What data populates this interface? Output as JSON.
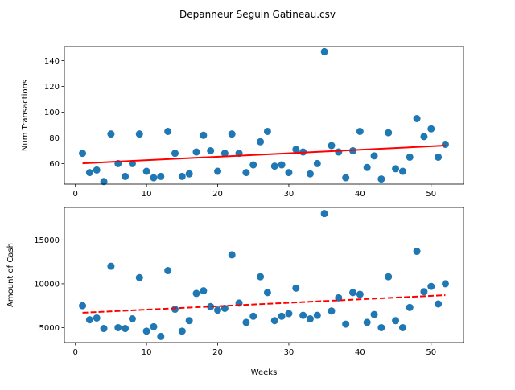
{
  "figure": {
    "suptitle": "Depanneur Seguin Gatineau.csv"
  },
  "colors": {
    "points": "#1f77b4",
    "trend": "#ff0000",
    "frame": "#000000",
    "background": "#ffffff"
  },
  "chart_data": [
    {
      "type": "scatter",
      "title": "",
      "xlabel": "",
      "ylabel": "Num Transactions",
      "xlim": [
        -1.55,
        54.55
      ],
      "ylim": [
        44,
        151
      ],
      "x_ticks": [
        0,
        10,
        20,
        30,
        40,
        50
      ],
      "y_ticks": [
        60,
        80,
        100,
        120,
        140
      ],
      "grid": false,
      "legend": "none",
      "x": [
        1,
        2,
        3,
        4,
        5,
        6,
        7,
        8,
        9,
        10,
        11,
        12,
        13,
        14,
        15,
        16,
        17,
        18,
        19,
        20,
        21,
        22,
        23,
        24,
        25,
        26,
        27,
        28,
        29,
        30,
        31,
        32,
        33,
        34,
        35,
        36,
        37,
        38,
        39,
        40,
        41,
        42,
        43,
        44,
        45,
        46,
        47,
        48,
        49,
        50,
        51,
        52
      ],
      "y": [
        68,
        53,
        55,
        46,
        83,
        60,
        50,
        60,
        83,
        54,
        49,
        50,
        85,
        68,
        50,
        52,
        69,
        82,
        70,
        54,
        68,
        83,
        68,
        53,
        59,
        77,
        85,
        58,
        59,
        53,
        71,
        69,
        52,
        60,
        147,
        74,
        69,
        49,
        70,
        85,
        57,
        66,
        48,
        84,
        56,
        54,
        65,
        95,
        81,
        87,
        65,
        75
      ],
      "trend": {
        "style": "solid",
        "x": [
          1,
          52
        ],
        "y": [
          60.2,
          74.0
        ]
      }
    },
    {
      "type": "scatter",
      "title": "",
      "xlabel": "Weeks",
      "ylabel": "Amount of Cash",
      "xlim": [
        -1.55,
        54.55
      ],
      "ylim": [
        3300,
        18700
      ],
      "x_ticks": [
        0,
        10,
        20,
        30,
        40,
        50
      ],
      "y_ticks": [
        5000,
        10000,
        15000
      ],
      "grid": false,
      "legend": "none",
      "x": [
        1,
        2,
        3,
        4,
        5,
        6,
        7,
        8,
        9,
        10,
        11,
        12,
        13,
        14,
        15,
        16,
        17,
        18,
        19,
        20,
        21,
        22,
        23,
        24,
        25,
        26,
        27,
        28,
        29,
        30,
        31,
        32,
        33,
        34,
        35,
        36,
        37,
        38,
        39,
        40,
        41,
        42,
        43,
        44,
        45,
        46,
        47,
        48,
        49,
        50,
        51,
        52
      ],
      "y": [
        7500,
        5900,
        6100,
        4900,
        12000,
        5000,
        4900,
        6000,
        10700,
        4600,
        5100,
        4000,
        11500,
        7100,
        4600,
        5800,
        8900,
        9200,
        7400,
        7000,
        7200,
        13300,
        7800,
        5600,
        6300,
        10800,
        9000,
        5800,
        6300,
        6600,
        9500,
        6400,
        6000,
        6400,
        18000,
        6900,
        8400,
        5400,
        9000,
        8800,
        5600,
        6500,
        5000,
        10800,
        5800,
        5000,
        7300,
        13700,
        9100,
        9700,
        7700,
        10000
      ],
      "trend": {
        "style": "dashed",
        "x": [
          1,
          52
        ],
        "y": [
          6700,
          8700
        ]
      }
    }
  ]
}
